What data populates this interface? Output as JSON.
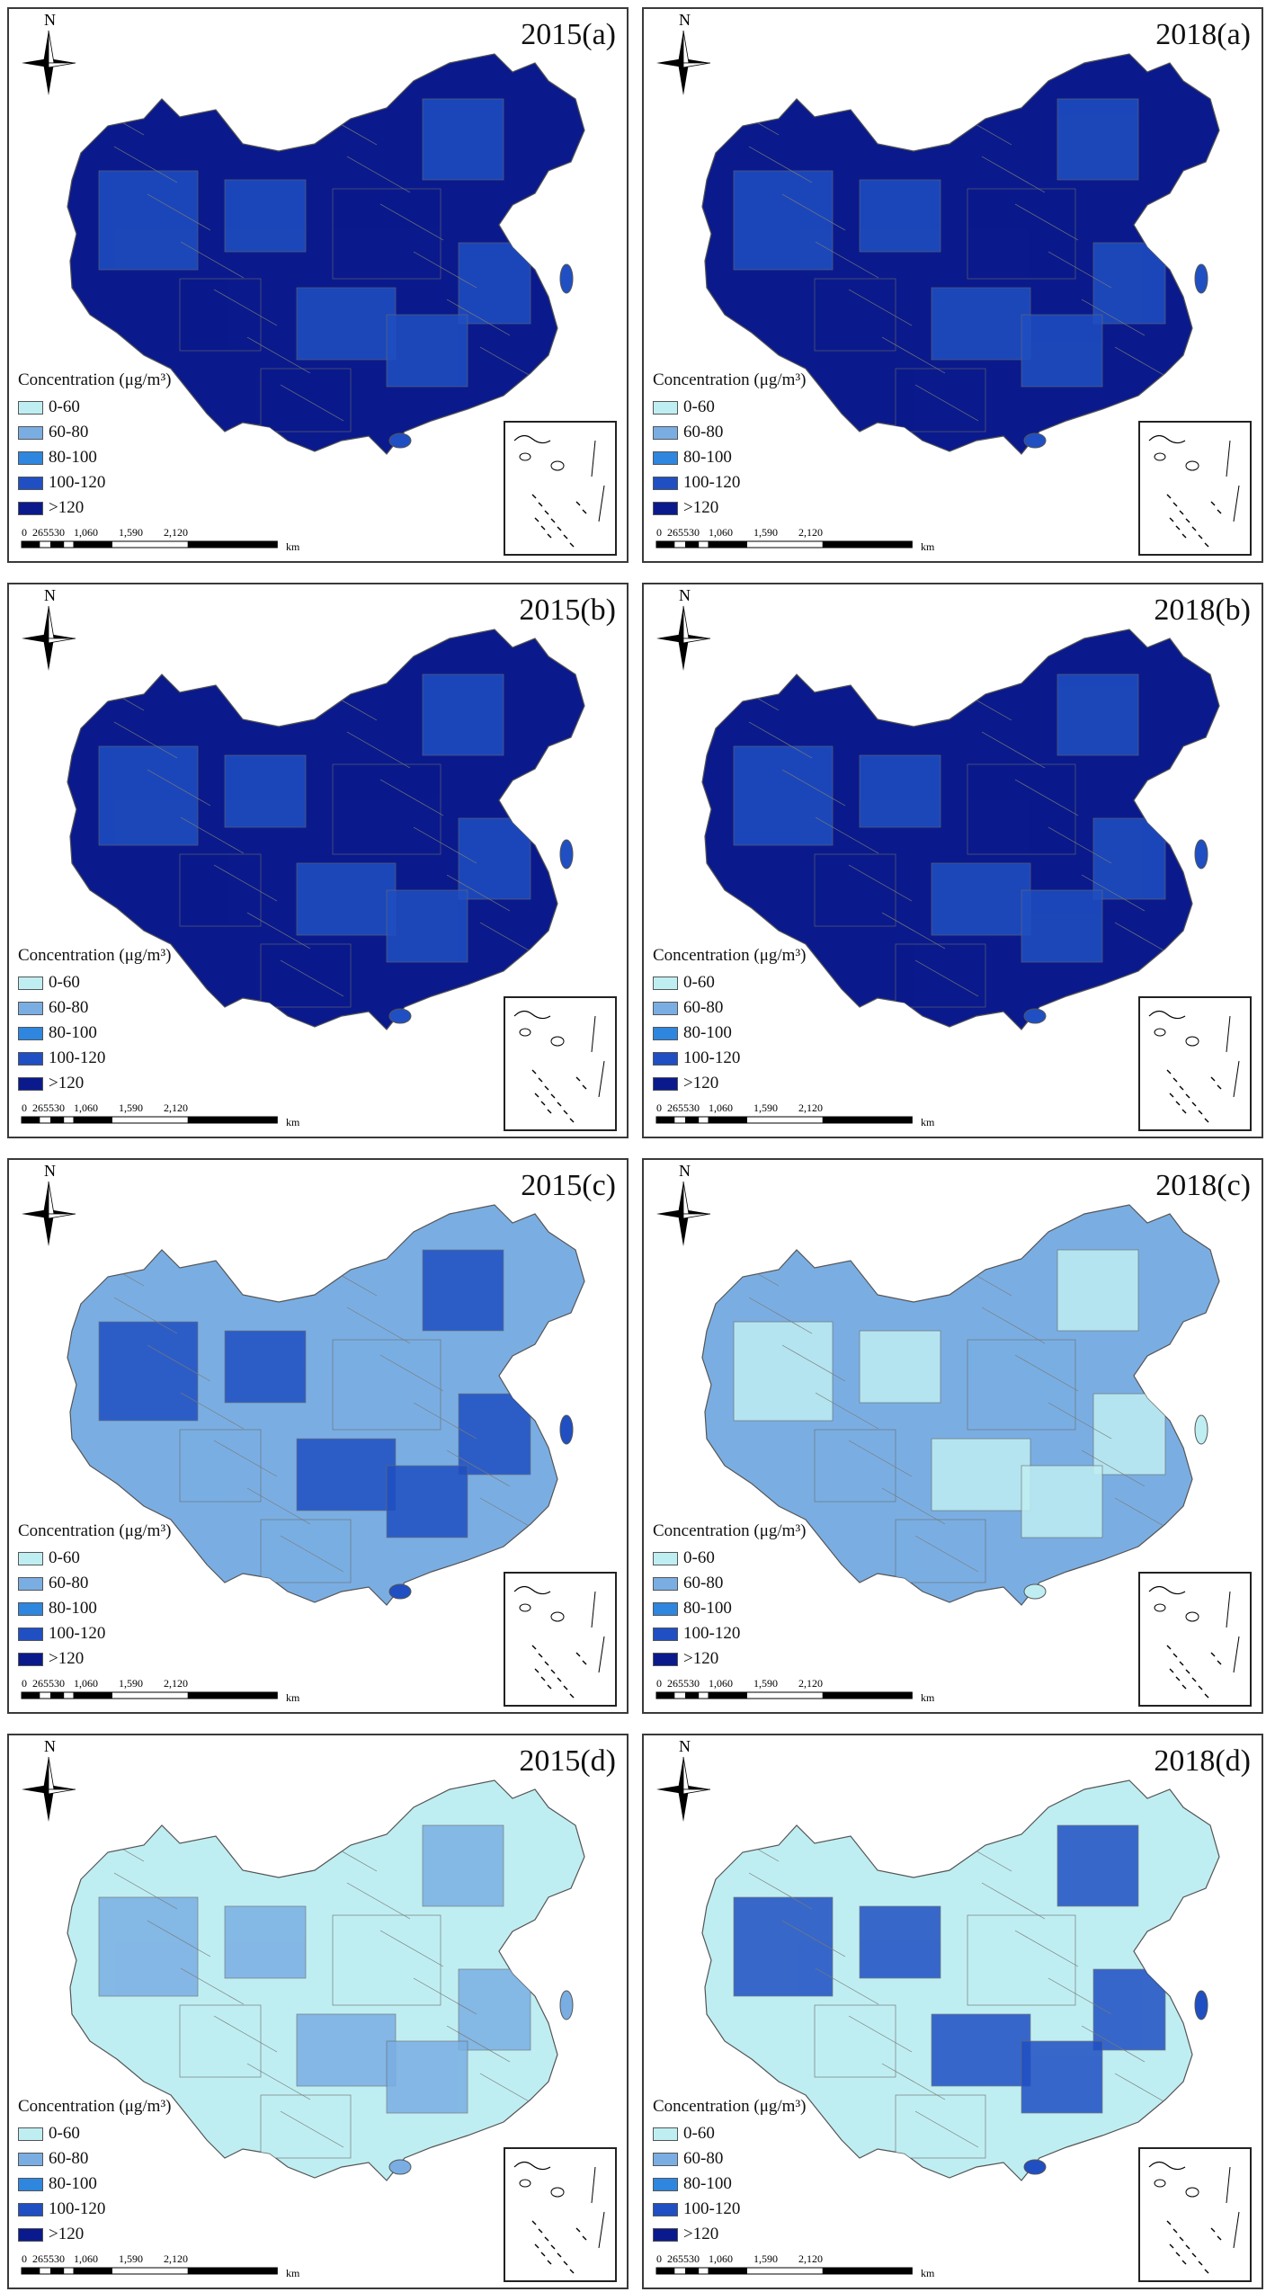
{
  "map_data": {
    "legend_title": "Concentration (μg/m³)",
    "legend_classes": [
      {
        "label": "0-60",
        "color": "#bfeef2"
      },
      {
        "label": "60-80",
        "color": "#7aaee3"
      },
      {
        "label": "80-100",
        "color": "#2e86de"
      },
      {
        "label": "100-120",
        "color": "#1f4fc2"
      },
      {
        "label": ">120",
        "color": "#0a1a8c"
      }
    ],
    "scale_ticks": [
      "0",
      "265",
      "530",
      "1,060",
      "1,590",
      "2,120"
    ],
    "scale_unit": "km",
    "north_label": "N",
    "panels": [
      {
        "title": "2015(a)",
        "dominant_class": ">120",
        "secondary_class": "100-120"
      },
      {
        "title": "2018(a)",
        "dominant_class": ">120",
        "secondary_class": "100-120"
      },
      {
        "title": "2015(b)",
        "dominant_class": ">120",
        "secondary_class": "100-120"
      },
      {
        "title": "2018(b)",
        "dominant_class": ">120",
        "secondary_class": "100-120"
      },
      {
        "title": "2015(c)",
        "dominant_class": "60-80",
        "secondary_class": "100-120"
      },
      {
        "title": "2018(c)",
        "dominant_class": "60-80",
        "secondary_class": "0-60"
      },
      {
        "title": "2015(d)",
        "dominant_class": "0-60",
        "secondary_class": "60-80"
      },
      {
        "title": "2018(d)",
        "dominant_class": "0-60",
        "secondary_class": "100-120"
      }
    ]
  }
}
